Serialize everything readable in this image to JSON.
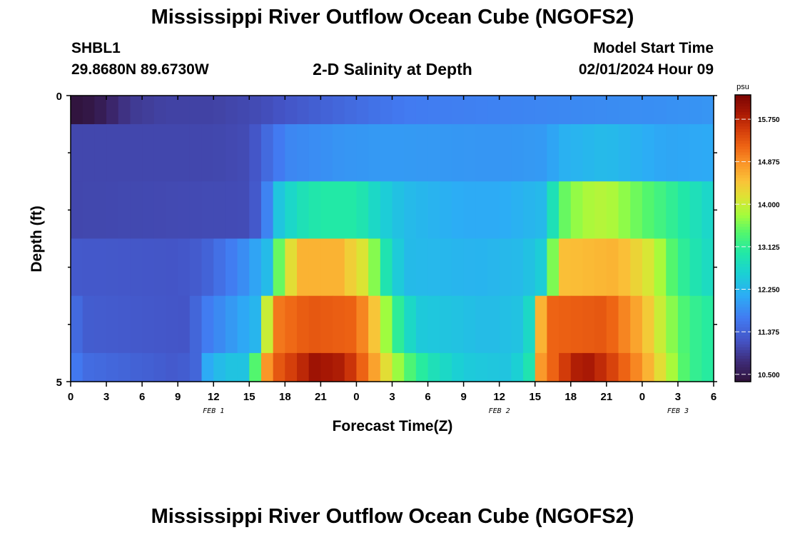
{
  "header": {
    "title": "Mississippi River Outflow Ocean Cube (NGOFS2)",
    "station_id": "SHBL1",
    "station_coords": "29.8680N  89.6730W",
    "subtitle": "2-D Salinity at Depth",
    "start_label": "Model Start Time",
    "start_value": "02/01/2024 Hour 09"
  },
  "footer": {
    "title": "Mississippi River Outflow Ocean Cube (NGOFS2)"
  },
  "chart_data": {
    "type": "heatmap",
    "ylabel": "Depth (ft)",
    "xlabel": "Forecast Time(Z)",
    "y_tick_labels": [
      "0",
      "5"
    ],
    "ylim": [
      0,
      5
    ],
    "x_tick_labels": [
      "0",
      "3",
      "6",
      "9",
      "12",
      "15",
      "18",
      "21",
      "0",
      "3",
      "6",
      "9",
      "12",
      "15",
      "18",
      "21",
      "0",
      "3",
      "6"
    ],
    "date_labels": [
      {
        "text": "FEB 1",
        "at_tick": 4
      },
      {
        "text": "FEB 2",
        "at_tick": 12
      },
      {
        "text": "FEB 3",
        "at_tick": 17
      }
    ],
    "colorbar": {
      "unit": "psu",
      "ticks": [
        "15.750",
        "14.875",
        "14.000",
        "13.125",
        "12.250",
        "11.375",
        "10.500"
      ],
      "range": [
        10.35,
        16.25
      ]
    },
    "x_hours": [
      0,
      54
    ],
    "rows": [
      {
        "depth_range": [
          0.0,
          0.5
        ],
        "keyframes": [
          [
            0,
            10.35
          ],
          [
            2,
            10.45
          ],
          [
            5,
            10.9
          ],
          [
            8,
            11.0
          ],
          [
            12,
            11.0
          ],
          [
            16,
            11.1
          ],
          [
            18,
            11.2
          ],
          [
            22,
            11.4
          ],
          [
            28,
            11.65
          ],
          [
            38,
            11.75
          ],
          [
            44,
            11.8
          ],
          [
            50,
            11.85
          ],
          [
            54,
            11.9
          ]
        ]
      },
      {
        "depth_range": [
          0.5,
          1.5
        ],
        "keyframes": [
          [
            0,
            11.05
          ],
          [
            12,
            11.05
          ],
          [
            15,
            11.1
          ],
          [
            16.5,
            11.45
          ],
          [
            18,
            11.75
          ],
          [
            23,
            11.9
          ],
          [
            27,
            11.95
          ],
          [
            36,
            11.9
          ],
          [
            40,
            11.95
          ],
          [
            41,
            12.15
          ],
          [
            45,
            12.3
          ],
          [
            50,
            12.05
          ],
          [
            54,
            12.1
          ]
        ]
      },
      {
        "depth_range": [
          1.5,
          2.5
        ],
        "keyframes": [
          [
            0,
            11.05
          ],
          [
            15,
            11.1
          ],
          [
            16.3,
            11.5
          ],
          [
            17,
            12.3
          ],
          [
            19,
            12.8
          ],
          [
            21,
            13.0
          ],
          [
            24,
            13.0
          ],
          [
            26,
            12.6
          ],
          [
            28,
            12.3
          ],
          [
            33,
            12.1
          ],
          [
            36,
            12.1
          ],
          [
            40,
            12.3
          ],
          [
            41,
            13.4
          ],
          [
            43,
            13.8
          ],
          [
            45,
            13.9
          ],
          [
            47,
            13.6
          ],
          [
            50,
            13.2
          ],
          [
            54,
            12.6
          ]
        ]
      },
      {
        "depth_range": [
          2.5,
          3.5
        ],
        "keyframes": [
          [
            0,
            11.25
          ],
          [
            9,
            11.2
          ],
          [
            11,
            11.3
          ],
          [
            15,
            11.9
          ],
          [
            16.5,
            12.3
          ],
          [
            17,
            13.0
          ],
          [
            18,
            14.0
          ],
          [
            19.5,
            14.6
          ],
          [
            22.5,
            14.6
          ],
          [
            25,
            14.0
          ],
          [
            26.5,
            12.9
          ],
          [
            28,
            12.3
          ],
          [
            34,
            12.2
          ],
          [
            38,
            12.3
          ],
          [
            40,
            12.6
          ],
          [
            40.5,
            13.6
          ],
          [
            41.5,
            14.5
          ],
          [
            46,
            14.6
          ],
          [
            49,
            14.0
          ],
          [
            51,
            13.2
          ],
          [
            53,
            12.8
          ],
          [
            54,
            12.7
          ]
        ]
      },
      {
        "depth_range": [
          3.5,
          4.5
        ],
        "keyframes": [
          [
            0,
            11.6
          ],
          [
            1,
            11.3
          ],
          [
            10,
            11.2
          ],
          [
            11,
            11.6
          ],
          [
            14,
            12.0
          ],
          [
            16,
            12.3
          ],
          [
            16.5,
            14.0
          ],
          [
            17,
            15.0
          ],
          [
            20,
            15.3
          ],
          [
            24,
            15.2
          ],
          [
            26,
            14.2
          ],
          [
            27,
            13.3
          ],
          [
            29,
            12.5
          ],
          [
            35,
            12.3
          ],
          [
            38,
            12.4
          ],
          [
            39,
            13.0
          ],
          [
            39.5,
            14.6
          ],
          [
            40.5,
            15.2
          ],
          [
            45,
            15.3
          ],
          [
            48,
            14.6
          ],
          [
            50,
            13.8
          ],
          [
            52,
            13.2
          ],
          [
            54,
            13.0
          ]
        ]
      },
      {
        "depth_range": [
          4.5,
          5.0
        ],
        "keyframes": [
          [
            0,
            11.75
          ],
          [
            1,
            11.5
          ],
          [
            9,
            11.25
          ],
          [
            10.5,
            11.4
          ],
          [
            11.5,
            12.1
          ],
          [
            13,
            12.4
          ],
          [
            15,
            12.4
          ],
          [
            15.5,
            13.4
          ],
          [
            16.2,
            14.6
          ],
          [
            17,
            15.2
          ],
          [
            19,
            15.6
          ],
          [
            20.5,
            15.95
          ],
          [
            23,
            15.8
          ],
          [
            25,
            15.0
          ],
          [
            26.5,
            14.2
          ],
          [
            28,
            13.5
          ],
          [
            30,
            12.9
          ],
          [
            33,
            12.5
          ],
          [
            37,
            12.4
          ],
          [
            38.5,
            12.9
          ],
          [
            39.5,
            14.8
          ],
          [
            41,
            15.4
          ],
          [
            43,
            15.95
          ],
          [
            45,
            15.6
          ],
          [
            48,
            14.8
          ],
          [
            50,
            14.0
          ],
          [
            52,
            13.2
          ],
          [
            54,
            13.0
          ]
        ]
      }
    ]
  }
}
